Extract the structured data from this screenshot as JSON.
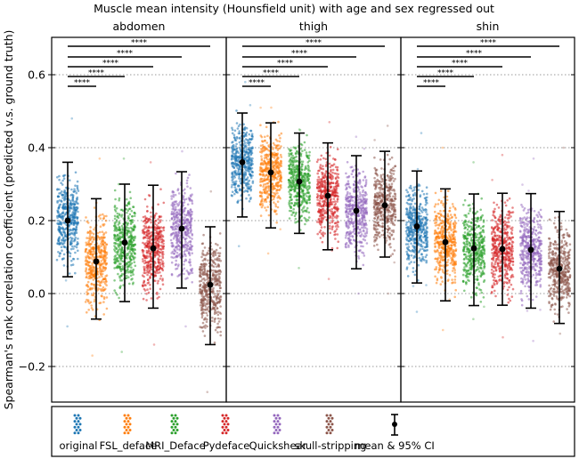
{
  "chart_data": {
    "type": "scatter",
    "subtype": "strip-plot with mean and 95% CI error bars",
    "title": "Muscle mean intensity (Hounsfield unit) with age and sex regressed out",
    "ylabel": "Spearman's rank correlation coefficient (predicted v.s. ground truth)",
    "xlabel": "",
    "ylim": [
      -0.3,
      0.7
    ],
    "yticks": [
      -0.2,
      0.0,
      0.2,
      0.4,
      0.6
    ],
    "ytick_labels": [
      "−0.2",
      "0.0",
      "0.2",
      "0.4",
      "0.6"
    ],
    "grid": "horizontal dotted at y ticks",
    "categories": [
      "original",
      "FSL_deface",
      "MRI_Deface",
      "Pydeface",
      "Quickshear",
      "skull-stripping"
    ],
    "colors": [
      "#1f77b4",
      "#ff7f0e",
      "#2ca02c",
      "#d62728",
      "#9467bd",
      "#8c564b"
    ],
    "significance_label": "****",
    "significance_comparisons": [
      [
        "original",
        "FSL_deface"
      ],
      [
        "original",
        "MRI_Deface"
      ],
      [
        "original",
        "Pydeface"
      ],
      [
        "original",
        "Quickshear"
      ],
      [
        "original",
        "skull-stripping"
      ]
    ],
    "panels": [
      {
        "name": "abdomen",
        "mean": [
          0.2,
          0.088,
          0.14,
          0.124,
          0.178,
          0.024
        ],
        "ci_upper": [
          0.36,
          0.26,
          0.3,
          0.297,
          0.334,
          0.183
        ],
        "ci_lower": [
          0.046,
          -0.07,
          -0.022,
          -0.04,
          0.015,
          -0.14
        ],
        "point_min": [
          -0.09,
          -0.17,
          -0.16,
          -0.14,
          -0.09,
          -0.27
        ],
        "point_max": [
          0.48,
          0.37,
          0.37,
          0.36,
          0.39,
          0.28
        ]
      },
      {
        "name": "thigh",
        "mean": [
          0.36,
          0.332,
          0.307,
          0.268,
          0.227,
          0.242
        ],
        "ci_upper": [
          0.495,
          0.468,
          0.44,
          0.413,
          0.378,
          0.39
        ],
        "ci_lower": [
          0.21,
          0.18,
          0.165,
          0.12,
          0.068,
          0.1
        ],
        "point_min": [
          0.13,
          0.11,
          0.07,
          0.04,
          0.0,
          0.0
        ],
        "point_max": [
          0.58,
          0.51,
          0.45,
          0.47,
          0.43,
          0.46
        ]
      },
      {
        "name": "shin",
        "mean": [
          0.184,
          0.141,
          0.124,
          0.122,
          0.12,
          0.068
        ],
        "ci_upper": [
          0.336,
          0.287,
          0.273,
          0.275,
          0.274,
          0.225
        ],
        "ci_lower": [
          0.029,
          -0.02,
          -0.033,
          -0.032,
          -0.04,
          -0.082
        ],
        "point_min": [
          -0.05,
          -0.1,
          -0.07,
          -0.12,
          -0.13,
          -0.11
        ],
        "point_max": [
          0.44,
          0.4,
          0.36,
          0.38,
          0.37,
          0.4
        ]
      }
    ],
    "legend": {
      "placement": "bottom",
      "entries": [
        "original",
        "FSL_deface",
        "MRI_Deface",
        "Pydeface",
        "Quickshear",
        "skull-stripping",
        "mean & 95% CI"
      ]
    }
  }
}
